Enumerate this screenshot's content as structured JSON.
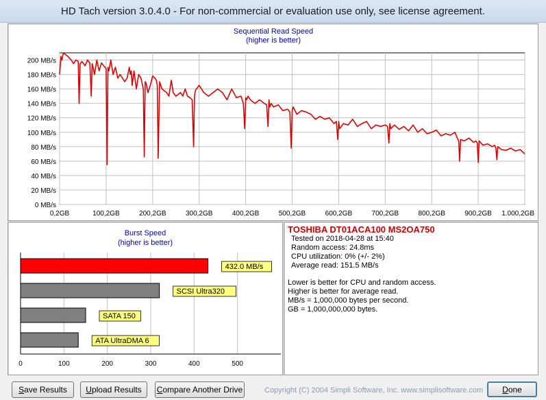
{
  "window": {
    "title": "HD Tach version 3.0.4.0  - For non-commercial or evaluation use only, see license agreement."
  },
  "colors": {
    "line": "#dd0000",
    "bar_primary": "#ff0000",
    "bar_ref": "#808080",
    "label_bg": "#ffff80",
    "title_blue": "#0000c0"
  },
  "chart_data": [
    {
      "type": "line",
      "title": "Sequential Read Speed",
      "subtitle": "(higher is better)",
      "xlabel": "",
      "ylabel": "",
      "xlim": [
        0,
        1000
      ],
      "ylim": [
        0,
        210
      ],
      "grid": true,
      "x_ticks": [
        "0,2GB",
        "100,2GB",
        "200,2GB",
        "300,2GB",
        "400,2GB",
        "500,2GB",
        "600,2GB",
        "700,2GB",
        "800,2GB",
        "900,2GB",
        "1.000,2GB"
      ],
      "y_ticks": [
        "0 MB/s",
        "20 MB/s",
        "40 MB/s",
        "60 MB/s",
        "80 MB/s",
        "100 MB/s",
        "120 MB/s",
        "140 MB/s",
        "160 MB/s",
        "180 MB/s",
        "200 MB/s"
      ],
      "series": [
        {
          "name": "TOSHIBA DT01ACA100 MS2OA750",
          "x": [
            0,
            3,
            5,
            8,
            12,
            18,
            25,
            30,
            35,
            40,
            42,
            44,
            48,
            55,
            60,
            65,
            68,
            70,
            72,
            75,
            80,
            85,
            90,
            95,
            100,
            102,
            104,
            106,
            110,
            115,
            120,
            125,
            130,
            140,
            145,
            150,
            152,
            154,
            156,
            160,
            165,
            170,
            175,
            180,
            182,
            184,
            186,
            190,
            195,
            200,
            205,
            208,
            210,
            212,
            215,
            220,
            230,
            235,
            240,
            242,
            244,
            250,
            260,
            265,
            270,
            275,
            280,
            285,
            288,
            290,
            292,
            300,
            310,
            320,
            330,
            340,
            350,
            360,
            370,
            380,
            390,
            395,
            398,
            400,
            402,
            405,
            410,
            420,
            430,
            440,
            445,
            448,
            450,
            452,
            455,
            460,
            470,
            480,
            490,
            495,
            498,
            500,
            502,
            510,
            520,
            530,
            540,
            550,
            560,
            570,
            580,
            590,
            595,
            598,
            600,
            602,
            610,
            620,
            630,
            640,
            650,
            660,
            670,
            680,
            690,
            700,
            705,
            708,
            710,
            712,
            720,
            730,
            740,
            750,
            760,
            770,
            780,
            790,
            800,
            810,
            820,
            830,
            840,
            850,
            855,
            858,
            860,
            862,
            870,
            880,
            890,
            895,
            898,
            900,
            902,
            910,
            920,
            930,
            935,
            938,
            940,
            942,
            950,
            960,
            970,
            980,
            990,
            1000
          ],
          "y": [
            180,
            205,
            200,
            210,
            208,
            205,
            200,
            195,
            200,
            198,
            140,
            195,
            198,
            192,
            200,
            196,
            150,
            195,
            190,
            180,
            200,
            185,
            196,
            192,
            188,
            55,
            190,
            185,
            200,
            180,
            190,
            175,
            180,
            170,
            175,
            190,
            180,
            185,
            165,
            185,
            160,
            180,
            175,
            160,
            66,
            170,
            168,
            155,
            165,
            178,
            175,
            172,
            165,
            64,
            170,
            160,
            155,
            150,
            172,
            165,
            155,
            150,
            155,
            150,
            160,
            150,
            148,
            145,
            80,
            150,
            158,
            165,
            155,
            150,
            155,
            160,
            155,
            145,
            160,
            148,
            150,
            140,
            105,
            148,
            145,
            150,
            145,
            140,
            145,
            140,
            138,
            108,
            145,
            135,
            140,
            135,
            138,
            130,
            132,
            128,
            78,
            130,
            135,
            125,
            130,
            128,
            125,
            118,
            122,
            118,
            120,
            112,
            115,
            90,
            115,
            105,
            112,
            110,
            118,
            108,
            112,
            115,
            105,
            110,
            108,
            110,
            108,
            85,
            112,
            105,
            110,
            104,
            108,
            102,
            110,
            100,
            105,
            98,
            100,
            103,
            95,
            98,
            96,
            100,
            92,
            88,
            60,
            90,
            88,
            92,
            86,
            88,
            85,
            58,
            88,
            82,
            84,
            80,
            82,
            78,
            62,
            80,
            76,
            75,
            78,
            74,
            76,
            70
          ]
        }
      ]
    },
    {
      "type": "bar",
      "orientation": "horizontal",
      "title": "Burst Speed",
      "subtitle": "(higher is better)",
      "xlim": [
        0,
        600
      ],
      "x_ticks": [
        "0",
        "100",
        "200",
        "300",
        "400",
        "500"
      ],
      "categories": [
        "432.0 MB/s",
        "SCSI Ultra320",
        "SATA 150",
        "ATA UltraDMA 6"
      ],
      "values": [
        432.0,
        320,
        150,
        133
      ]
    }
  ],
  "info": {
    "drive": "TOSHIBA DT01ACA100 MS2OA750",
    "lines": [
      "Tested on 2018-04-28 at 15:40",
      "Random access: 24.8ms",
      "CPU utilization: 0% (+/- 2%)",
      "Average read: 151.5 MB/s"
    ],
    "notes": [
      "Lower is better for CPU and random access.",
      "Higher is better for average read.",
      "MB/s = 1,000,000 bytes per second.",
      "GB = 1,000,000,000 bytes."
    ]
  },
  "buttons": {
    "save": "Save Results",
    "upload": "Upload Results",
    "compare": "Compare Another Drive",
    "done": "Done"
  },
  "footer": {
    "copyright": "Copyright (C) 2004 Simpli Software, Inc. www.simplisoftware.com"
  }
}
